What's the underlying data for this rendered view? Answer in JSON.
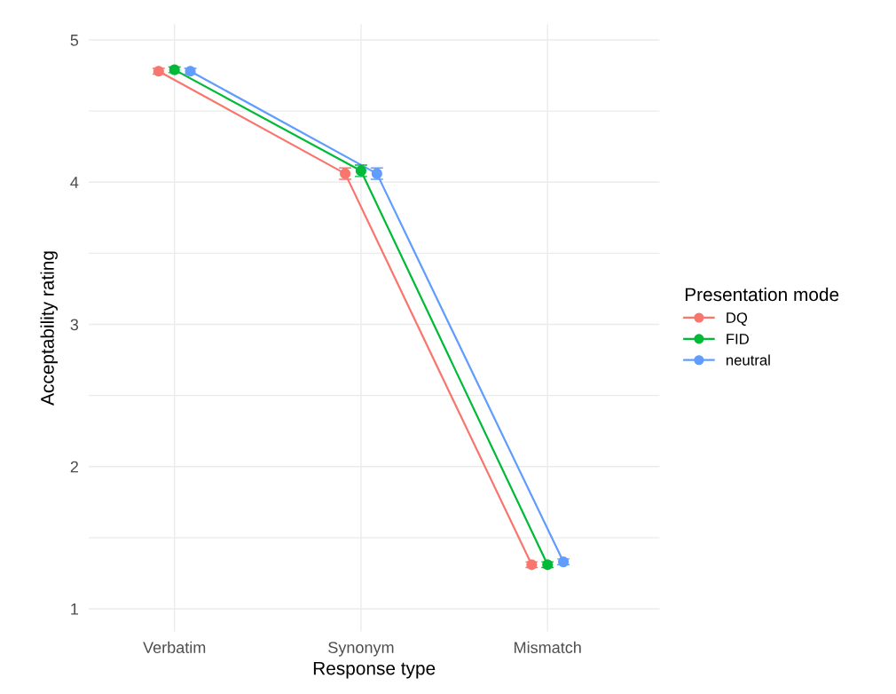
{
  "chart_data": {
    "type": "line",
    "xlabel": "Response type",
    "ylabel": "Acceptability rating",
    "legend_title": "Presentation mode",
    "categories": [
      "Verbatim",
      "Synonym",
      "Mismatch"
    ],
    "series": [
      {
        "name": "DQ",
        "color": "#f8766d",
        "values": [
          4.78,
          4.06,
          1.31
        ],
        "errors": [
          0.02,
          0.04,
          0.02
        ]
      },
      {
        "name": "FID",
        "color": "#00ba38",
        "values": [
          4.79,
          4.08,
          1.31
        ],
        "errors": [
          0.02,
          0.04,
          0.02
        ]
      },
      {
        "name": "neutral",
        "color": "#619cff",
        "values": [
          4.78,
          4.06,
          1.33
        ],
        "errors": [
          0.02,
          0.04,
          0.02
        ]
      }
    ],
    "ylim": [
      0.84,
      5.11
    ],
    "yticks": [
      1,
      {
        "value": 1.5,
        "label": null
      },
      2,
      {
        "value": 2.5,
        "label": null
      },
      3,
      {
        "value": 3.5,
        "label": null
      },
      4,
      {
        "value": 4.5,
        "label": null
      },
      5
    ],
    "grid": true,
    "legend": "right",
    "marker": "circle",
    "line_style": "solid"
  }
}
